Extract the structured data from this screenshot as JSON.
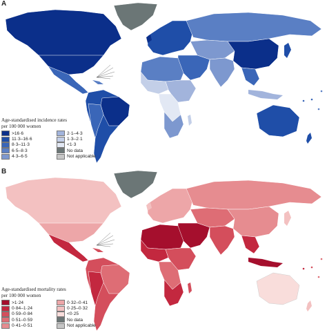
{
  "panel_a": {
    "letter": "A",
    "legend_title_line1": "Age-standardised incidence rates",
    "legend_title_line2": "per 100 000 women",
    "legend": [
      {
        "label": ">16·6",
        "color": "#0b2f8a"
      },
      {
        "label": "11·3–16·6",
        "color": "#1f4ea8"
      },
      {
        "label": "8·3–11·3",
        "color": "#3a66b8"
      },
      {
        "label": "6·5–8·3",
        "color": "#5a7fc4"
      },
      {
        "label": "4·3–6·5",
        "color": "#7d98cf"
      },
      {
        "label": "2·1–4·3",
        "color": "#a2b4dc"
      },
      {
        "label": "1·3–2·1",
        "color": "#c3cfe8"
      },
      {
        "label": "<1·3",
        "color": "#e2e8f4"
      },
      {
        "label": "No data",
        "color": "#6b7676"
      },
      {
        "label": "Not applicable",
        "color": "#c6c6c6"
      }
    ]
  },
  "panel_b": {
    "letter": "B",
    "legend_title_line1": "Age-standardised mortality rates",
    "legend_title_line2": "per 100 000 women",
    "legend": [
      {
        "label": ">1·24",
        "color": "#a50f2d"
      },
      {
        "label": "0·84–1·24",
        "color": "#c3283f"
      },
      {
        "label": "0·59–0·84",
        "color": "#d44e5c"
      },
      {
        "label": "0·51–0·59",
        "color": "#de6d75"
      },
      {
        "label": "0·41–0·51",
        "color": "#e68c90"
      },
      {
        "label": "0·32–0·41",
        "color": "#eda6a8"
      },
      {
        "label": "0·25–0·32",
        "color": "#f3c1c1"
      },
      {
        "label": "<0·25",
        "color": "#f9dddb"
      },
      {
        "label": "No data",
        "color": "#6b7676"
      },
      {
        "label": "Not applicable",
        "color": "#c6c6c6"
      }
    ]
  }
}
